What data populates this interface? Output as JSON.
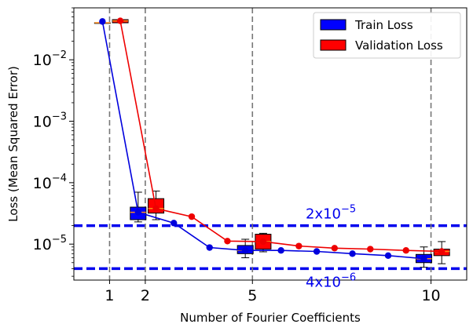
{
  "chart_data": {
    "type": "line",
    "xlabel": "Number of Fourier Coefficients",
    "ylabel": "Loss (Mean Squared Error)",
    "x_scale": "linear",
    "y_scale": "log",
    "xlim": [
      0.0,
      11.0
    ],
    "ylim": [
      2.6e-06,
      0.07
    ],
    "x_ticks": [
      1,
      2,
      5,
      10
    ],
    "x_tick_labels": [
      "1",
      "2",
      "5",
      "10"
    ],
    "y_ticks": [
      1e-05,
      0.0001,
      0.001,
      0.01
    ],
    "y_tick_labels": [
      {
        "base": "10",
        "exp": "−5"
      },
      {
        "base": "10",
        "exp": "−4"
      },
      {
        "base": "10",
        "exp": "−3"
      },
      {
        "base": "10",
        "exp": "−2"
      }
    ],
    "grid": false,
    "vlines": [
      1,
      2,
      5,
      10
    ],
    "hlines": [
      {
        "y": 2e-05,
        "label": {
          "base": "2x10",
          "exp": "−5"
        },
        "color": "#0000ee"
      },
      {
        "y": 4e-06,
        "label": {
          "base": "4x10",
          "exp": "−6"
        },
        "color": "#0000ee"
      }
    ],
    "legend": {
      "position": "top-right",
      "entries": [
        {
          "label": "Train Loss",
          "color": "#0000ff"
        },
        {
          "label": "Validation Loss",
          "color": "#ff0000"
        }
      ]
    },
    "series": [
      {
        "name": "Train Loss",
        "color": "#0000dd",
        "x": [
          0.8,
          1.8,
          2.8,
          3.8,
          4.8,
          5.8,
          6.8,
          7.8,
          8.8,
          9.8
        ],
        "y": [
          0.042,
          3.3e-05,
          2.2e-05,
          8.8e-06,
          7.9e-06,
          7.9e-06,
          7.6e-06,
          7e-06,
          6.5e-06,
          5.8e-06
        ]
      },
      {
        "name": "Validation Loss",
        "color": "#ee0000",
        "x": [
          1.3,
          2.3,
          3.3,
          4.3,
          5.3,
          6.3,
          7.3,
          8.3,
          9.3,
          10.3
        ],
        "y": [
          0.043,
          3.8e-05,
          2.8e-05,
          1.12e-05,
          1.1e-05,
          9.3e-06,
          8.6e-06,
          8.3e-06,
          7.9e-06,
          7.6e-06
        ]
      }
    ],
    "boxes": [
      {
        "series": "Train Loss",
        "x": 0.8,
        "whisker_low": 0.04,
        "q1": 0.04,
        "median": 0.04,
        "q3": 0.04,
        "whisker_high": 0.04
      },
      {
        "series": "Validation Loss",
        "x": 1.3,
        "whisker_low": 0.04,
        "q1": 0.04,
        "median": 0.043,
        "q3": 0.045,
        "whisker_high": 0.045
      },
      {
        "series": "Train Loss",
        "x": 1.8,
        "whisker_low": 2.3e-05,
        "q1": 2.5e-05,
        "median": 3.3e-05,
        "q3": 4e-05,
        "whisker_high": 7e-05
      },
      {
        "series": "Validation Loss",
        "x": 2.3,
        "whisker_low": 2.5e-05,
        "q1": 3.2e-05,
        "median": 3.8e-05,
        "q3": 5.5e-05,
        "whisker_high": 7.3e-05
      },
      {
        "series": "Train Loss",
        "x": 4.8,
        "whisker_low": 6e-06,
        "q1": 7e-06,
        "median": 7.9e-06,
        "q3": 9.5e-06,
        "whisker_high": 1.2e-05
      },
      {
        "series": "Validation Loss",
        "x": 5.3,
        "whisker_low": 7.5e-06,
        "q1": 8.3e-06,
        "median": 1.1e-05,
        "q3": 1.45e-05,
        "whisker_high": 1.5e-05
      },
      {
        "series": "Train Loss",
        "x": 9.8,
        "whisker_low": 4.2e-06,
        "q1": 5e-06,
        "median": 5.8e-06,
        "q3": 6.8e-06,
        "whisker_high": 9e-06
      },
      {
        "series": "Validation Loss",
        "x": 10.3,
        "whisker_low": 4.8e-06,
        "q1": 6.5e-06,
        "median": 7.6e-06,
        "q3": 8.3e-06,
        "whisker_high": 1.1e-05
      }
    ]
  }
}
